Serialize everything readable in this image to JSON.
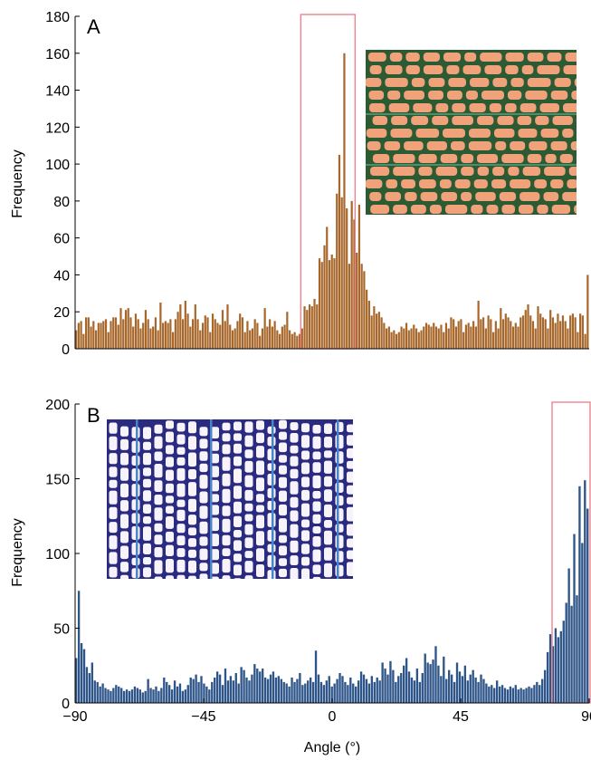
{
  "chart_data": [
    {
      "type": "bar",
      "panel_label": "A",
      "ylabel": "Frequency",
      "xlabel": "",
      "xlim": [
        -90,
        90
      ],
      "ylim": [
        0,
        180
      ],
      "yticks": [
        "0",
        "20",
        "40",
        "60",
        "80",
        "100",
        "120",
        "140",
        "160",
        "180"
      ],
      "xticks": [],
      "bar_color": "#a8672a",
      "highlight_box": {
        "x_range": [
          -11,
          8
        ],
        "color": "#f07a85"
      },
      "inset": {
        "content": "micrograph",
        "palette": [
          "#f0a27a",
          "#2c5a33",
          "#4e8f6b"
        ]
      },
      "series": [
        {
          "x_start": -90,
          "x_step": 1,
          "values": [
            10,
            14,
            15,
            8,
            17,
            17,
            12,
            15,
            10,
            14,
            14,
            15,
            16,
            9,
            15,
            17,
            17,
            13,
            22,
            16,
            21,
            22,
            17,
            12,
            19,
            16,
            11,
            14,
            21,
            16,
            11,
            12,
            17,
            10,
            25,
            14,
            15,
            14,
            16,
            9,
            16,
            20,
            24,
            16,
            26,
            19,
            12,
            16,
            24,
            16,
            10,
            14,
            18,
            17,
            9,
            19,
            16,
            14,
            13,
            21,
            15,
            24,
            13,
            10,
            11,
            15,
            19,
            17,
            9,
            15,
            10,
            11,
            16,
            14,
            7,
            11,
            22,
            12,
            16,
            12,
            15,
            10,
            8,
            12,
            13,
            20,
            10,
            8,
            9,
            7,
            8,
            11,
            23,
            21,
            24,
            23,
            27,
            24,
            49,
            47,
            56,
            66,
            48,
            51,
            49,
            84,
            105,
            82,
            160,
            76,
            46,
            80,
            70,
            52,
            78,
            46,
            42,
            32,
            26,
            18,
            23,
            19,
            20,
            17,
            14,
            11,
            12,
            9,
            10,
            8,
            9,
            12,
            11,
            14,
            10,
            11,
            13,
            11,
            9,
            10,
            12,
            14,
            13,
            12,
            14,
            12,
            11,
            13,
            9,
            14,
            11,
            17,
            16,
            12,
            15,
            16,
            9,
            13,
            14,
            12,
            15,
            12,
            26,
            16,
            17,
            11,
            18,
            16,
            9,
            15,
            11,
            22,
            16,
            19,
            17,
            15,
            12,
            14,
            12,
            17,
            18,
            21,
            24,
            18,
            15,
            11,
            23,
            19,
            17,
            16,
            11,
            21,
            17,
            14,
            19,
            15,
            18,
            15,
            11,
            18,
            19,
            17,
            9,
            19,
            18,
            8,
            40
          ]
        }
      ]
    },
    {
      "type": "bar",
      "panel_label": "B",
      "ylabel": "Frequency",
      "xlabel": "Angle (°)",
      "xlim": [
        -90,
        90
      ],
      "ylim": [
        0,
        200
      ],
      "yticks": [
        "0",
        "50",
        "100",
        "150",
        "200"
      ],
      "xticks": [
        "−90",
        "−45",
        "0",
        "45",
        "90"
      ],
      "bar_color": "#2e5589",
      "highlight_box": {
        "x_range": [
          77,
          91
        ],
        "color": "#f07a85"
      },
      "inset": {
        "content": "micrograph",
        "palette": [
          "#f6f4fa",
          "#2a2a80",
          "#4a85c8"
        ]
      },
      "series": [
        {
          "x_start": -90,
          "x_step": 1,
          "values": [
            30,
            75,
            40,
            36,
            24,
            20,
            27,
            15,
            14,
            11,
            13,
            10,
            9,
            8,
            10,
            12,
            11,
            10,
            8,
            9,
            8,
            9,
            11,
            10,
            9,
            7,
            8,
            16,
            10,
            9,
            11,
            8,
            10,
            17,
            14,
            12,
            9,
            15,
            11,
            13,
            8,
            9,
            12,
            17,
            16,
            19,
            14,
            18,
            13,
            11,
            9,
            14,
            17,
            21,
            19,
            12,
            23,
            15,
            18,
            15,
            20,
            13,
            24,
            22,
            17,
            15,
            19,
            26,
            23,
            21,
            23,
            17,
            16,
            19,
            21,
            17,
            18,
            16,
            14,
            13,
            11,
            17,
            14,
            16,
            20,
            12,
            13,
            15,
            17,
            14,
            35,
            19,
            14,
            12,
            15,
            18,
            11,
            13,
            16,
            20,
            18,
            14,
            12,
            17,
            13,
            11,
            15,
            21,
            19,
            16,
            13,
            18,
            14,
            17,
            15,
            27,
            23,
            19,
            28,
            22,
            14,
            18,
            20,
            25,
            30,
            21,
            17,
            15,
            23,
            14,
            20,
            33,
            27,
            26,
            29,
            38,
            25,
            18,
            31,
            16,
            22,
            19,
            14,
            27,
            21,
            18,
            25,
            15,
            19,
            22,
            17,
            14,
            19,
            16,
            13,
            11,
            12,
            10,
            15,
            11,
            12,
            10,
            9,
            11,
            10,
            12,
            9,
            10,
            9,
            10,
            11,
            10,
            12,
            14,
            12,
            16,
            22,
            34,
            46,
            38,
            50,
            44,
            48,
            55,
            67,
            90,
            65,
            113,
            72,
            145,
            107,
            149,
            130
          ]
        }
      ]
    }
  ]
}
